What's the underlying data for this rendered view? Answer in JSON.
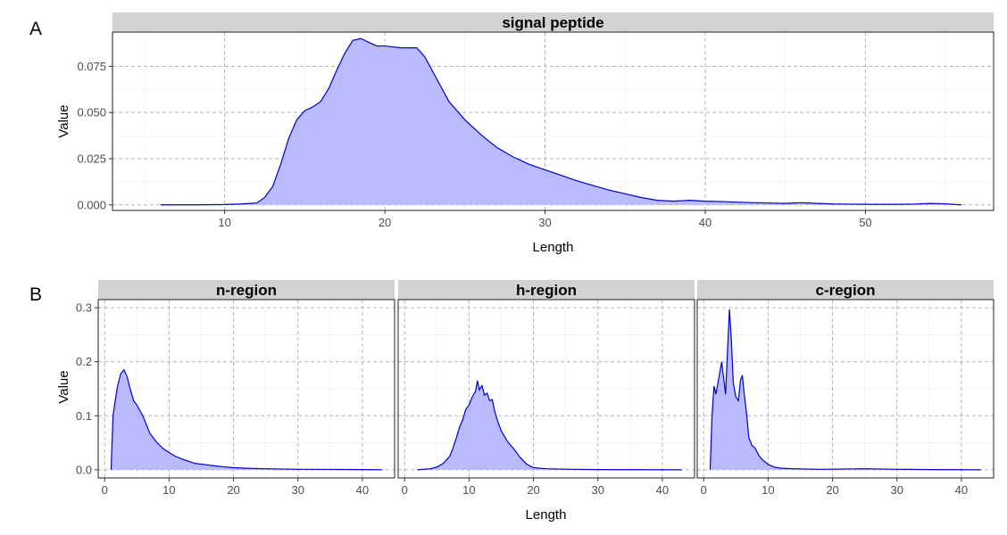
{
  "figure": {
    "panel_a_label": "A",
    "panel_b_label": "B"
  },
  "chart_data": [
    {
      "type": "area",
      "strip": "signal peptide",
      "xlabel": "Length",
      "ylabel": "Value",
      "xlim": [
        3,
        58
      ],
      "ylim": [
        -0.003,
        0.0935
      ],
      "xticks": [
        10,
        20,
        30,
        40,
        50
      ],
      "xtick_labels": [
        "10",
        "20",
        "30",
        "40",
        "50"
      ],
      "yticks": [
        0,
        0.025,
        0.05,
        0.075
      ],
      "ytick_labels": [
        "0.000",
        "0.025",
        "0.050",
        "0.075"
      ],
      "grid": true,
      "fill_color": "#babaff",
      "line_color": "#0000cc",
      "x": [
        6,
        8,
        10,
        11,
        12,
        12.5,
        13,
        13.5,
        14,
        14.5,
        15,
        15.5,
        16,
        16.5,
        17,
        17.5,
        18,
        18.5,
        19,
        19.5,
        20,
        21,
        22,
        22.5,
        23,
        23.5,
        24,
        25,
        26,
        27,
        28,
        29,
        30,
        31,
        32,
        33,
        34,
        35,
        36,
        37,
        38,
        39,
        40,
        41,
        42,
        43,
        44,
        45,
        46,
        47,
        48,
        49,
        50,
        51,
        52,
        53,
        54,
        55,
        56
      ],
      "y": [
        0,
        0,
        0.0002,
        0.0005,
        0.001,
        0.004,
        0.01,
        0.022,
        0.036,
        0.046,
        0.051,
        0.053,
        0.056,
        0.063,
        0.073,
        0.082,
        0.089,
        0.09,
        0.088,
        0.086,
        0.086,
        0.085,
        0.085,
        0.08,
        0.072,
        0.064,
        0.056,
        0.046,
        0.038,
        0.031,
        0.026,
        0.022,
        0.019,
        0.016,
        0.013,
        0.0105,
        0.008,
        0.006,
        0.004,
        0.0025,
        0.002,
        0.0025,
        0.002,
        0.0018,
        0.0015,
        0.0012,
        0.001,
        0.0008,
        0.0012,
        0.0008,
        0.0005,
        0.0004,
        0.0003,
        0.0003,
        0.0003,
        0.0004,
        0.0008,
        0.0006,
        0
      ]
    },
    {
      "type": "area",
      "strip": "n-region",
      "xlabel": "Length",
      "ylabel": "Value",
      "xlim": [
        -1,
        45
      ],
      "ylim": [
        -0.015,
        0.315
      ],
      "xticks": [
        0,
        10,
        20,
        30,
        40
      ],
      "xtick_labels": [
        "0",
        "10",
        "20",
        "30",
        "40"
      ],
      "yticks": [
        0,
        0.1,
        0.2,
        0.3
      ],
      "ytick_labels": [
        "0.0",
        "0.1",
        "0.2",
        "0.3"
      ],
      "grid": true,
      "fill_color": "#babaff",
      "line_color": "#0000cc",
      "x": [
        1,
        1.3,
        1.6,
        2,
        2.5,
        3,
        3.5,
        4,
        4.5,
        5,
        6,
        7,
        8,
        9,
        10,
        11,
        12,
        13,
        14,
        16,
        18,
        20,
        22,
        25,
        30,
        35,
        40,
        43
      ],
      "y": [
        0,
        0.1,
        0.125,
        0.155,
        0.178,
        0.185,
        0.172,
        0.148,
        0.128,
        0.12,
        0.098,
        0.068,
        0.052,
        0.04,
        0.032,
        0.025,
        0.02,
        0.016,
        0.012,
        0.009,
        0.006,
        0.004,
        0.003,
        0.002,
        0.001,
        0.0008,
        0.0005,
        0
      ]
    },
    {
      "type": "area",
      "strip": "h-region",
      "xlabel": "Length",
      "ylabel": "",
      "xlim": [
        -1,
        45
      ],
      "ylim": [
        -0.015,
        0.315
      ],
      "xticks": [
        0,
        10,
        20,
        30,
        40
      ],
      "xtick_labels": [
        "0",
        "10",
        "20",
        "30",
        "40"
      ],
      "yticks": [
        0,
        0.1,
        0.2,
        0.3
      ],
      "ytick_labels": [],
      "grid": true,
      "fill_color": "#babaff",
      "line_color": "#0000cc",
      "x": [
        2,
        4,
        5,
        6,
        7,
        7.5,
        8,
        8.5,
        9,
        9.5,
        10,
        10.5,
        11,
        11.3,
        11.6,
        12,
        12.4,
        12.8,
        13.2,
        13.6,
        14,
        14.5,
        15,
        16,
        17,
        18,
        19,
        20,
        22,
        26,
        30,
        35,
        43
      ],
      "y": [
        0,
        0.002,
        0.005,
        0.012,
        0.025,
        0.04,
        0.058,
        0.078,
        0.092,
        0.112,
        0.12,
        0.135,
        0.145,
        0.165,
        0.148,
        0.156,
        0.138,
        0.142,
        0.128,
        0.13,
        0.108,
        0.088,
        0.072,
        0.052,
        0.038,
        0.022,
        0.01,
        0.004,
        0.002,
        0.001,
        0.0005,
        0.0003,
        0
      ]
    },
    {
      "type": "area",
      "strip": "c-region",
      "xlabel": "Length",
      "ylabel": "",
      "xlim": [
        -1,
        45
      ],
      "ylim": [
        -0.015,
        0.315
      ],
      "xticks": [
        0,
        10,
        20,
        30,
        40
      ],
      "xtick_labels": [
        "0",
        "10",
        "20",
        "30",
        "40"
      ],
      "yticks": [
        0,
        0.1,
        0.2,
        0.3
      ],
      "ytick_labels": [],
      "grid": true,
      "fill_color": "#babaff",
      "line_color": "#0000cc",
      "x": [
        1,
        1.3,
        1.6,
        1.9,
        2.2,
        2.5,
        2.8,
        3.1,
        3.4,
        3.7,
        4,
        4.3,
        4.6,
        5,
        5.4,
        5.7,
        6,
        6.3,
        6.7,
        7,
        7.5,
        8,
        8.5,
        9,
        10,
        11,
        12,
        14,
        18,
        25,
        30,
        35,
        43
      ],
      "y": [
        0,
        0.1,
        0.155,
        0.14,
        0.16,
        0.18,
        0.2,
        0.17,
        0.14,
        0.22,
        0.297,
        0.24,
        0.16,
        0.135,
        0.128,
        0.165,
        0.175,
        0.14,
        0.1,
        0.06,
        0.045,
        0.04,
        0.028,
        0.02,
        0.01,
        0.005,
        0.003,
        0.002,
        0.001,
        0.002,
        0.001,
        0.0005,
        0
      ]
    }
  ]
}
